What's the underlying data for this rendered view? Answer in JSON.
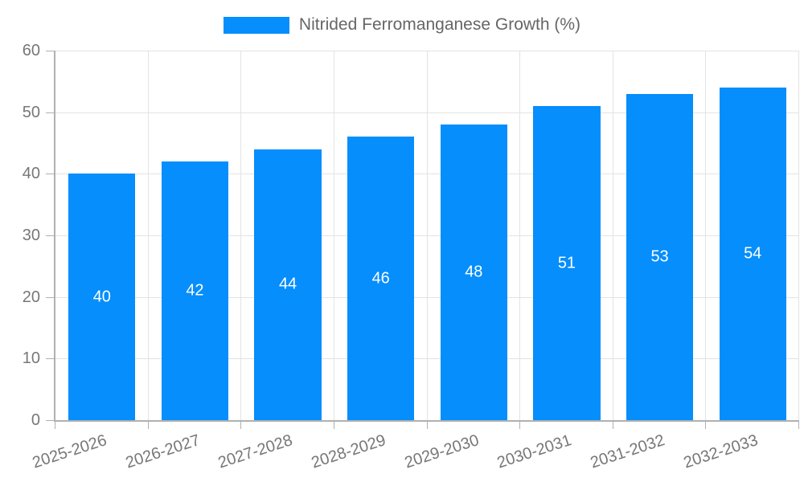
{
  "chart_data": {
    "type": "bar",
    "title": "Nitrided Ferromanganese Growth (%)",
    "categories": [
      "2025-2026",
      "2026-2027",
      "2027-2028",
      "2028-2029",
      "2029-2030",
      "2030-2031",
      "2031-2032",
      "2032-2033"
    ],
    "values": [
      40,
      42,
      44,
      46,
      48,
      51,
      53,
      54
    ],
    "xlabel": "",
    "ylabel": "",
    "ylim": [
      0,
      60
    ],
    "yticks": [
      0,
      10,
      20,
      30,
      40,
      50,
      60
    ],
    "grid": true,
    "legend_position": "top",
    "x_label_rotation_deg": -18,
    "colors": {
      "bar": "#058efc",
      "bar_label": "#ffffff",
      "grid": "#e3e3e3",
      "axis": "#b0b0b0",
      "tick_text": "#777777",
      "legend_text": "#666666",
      "background": "#ffffff"
    }
  },
  "legend": {
    "label": "Nitrided Ferromanganese Growth (%)"
  }
}
